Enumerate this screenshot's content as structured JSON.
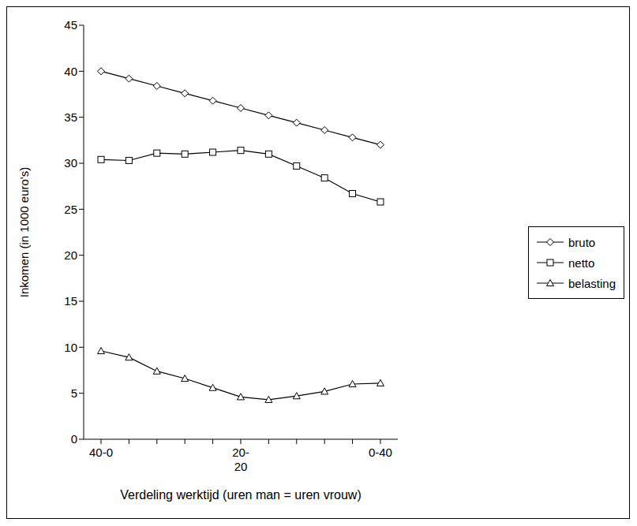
{
  "chart_data": {
    "type": "line",
    "x_label": "Verdeling werktijd (uren man = uren vrouw)",
    "y_label": "Inkomen (in 1000 euro's)",
    "categories": [
      "40-0",
      null,
      null,
      null,
      null,
      "20-\n20",
      null,
      null,
      null,
      null,
      "0-40"
    ],
    "series": [
      {
        "name": "bruto",
        "color": "#000000",
        "marker": "diamond",
        "values": [
          40,
          39.2,
          38.4,
          37.6,
          36.8,
          36.0,
          35.2,
          34.4,
          33.6,
          32.8,
          32.0
        ]
      },
      {
        "name": "netto",
        "color": "#000000",
        "marker": "square",
        "values": [
          30.4,
          30.3,
          31.1,
          31.0,
          31.2,
          31.4,
          31.0,
          29.7,
          28.4,
          26.7,
          25.8
        ]
      },
      {
        "name": "belasting",
        "color": "#000000",
        "marker": "triangle",
        "values": [
          9.6,
          8.9,
          7.4,
          6.6,
          5.6,
          4.6,
          4.3,
          4.7,
          5.2,
          6.0,
          6.1
        ]
      }
    ],
    "ylim": [
      0,
      45
    ],
    "yticks": [
      0,
      5,
      10,
      15,
      20,
      25,
      30,
      35,
      40,
      45
    ],
    "grid": false,
    "legend": "right"
  }
}
